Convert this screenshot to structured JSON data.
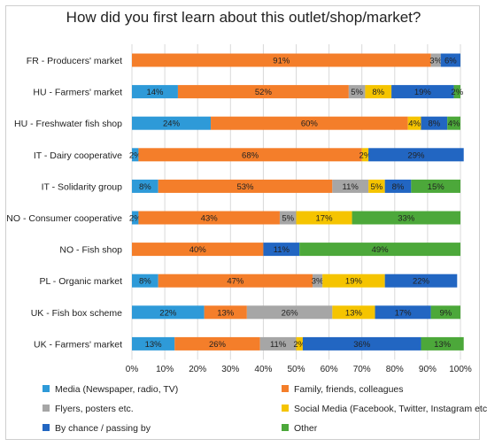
{
  "chart_data": {
    "type": "bar",
    "orientation": "horizontal-stacked-100",
    "title": "How did you first learn about this outlet/shop/market?",
    "categories": [
      "FR - Producers' market",
      "HU - Farmers' market",
      "HU - Freshwater fish shop",
      "IT - Dairy cooperative",
      "IT - Solidarity group",
      "NO - Consumer cooperative",
      "NO - Fish shop",
      "PL - Organic market",
      "UK -  Fish box scheme",
      "UK - Farmers' market"
    ],
    "xlim": [
      0,
      100
    ],
    "x_ticks": [
      "0%",
      "10%",
      "20%",
      "30%",
      "40%",
      "50%",
      "60%",
      "70%",
      "80%",
      "90%",
      "100%"
    ],
    "grid": true,
    "legend_position": "bottom",
    "series": [
      {
        "name": "Media (Newspaper, radio, TV)",
        "color": "#2e9ad8",
        "values": [
          0,
          14,
          24,
          2,
          8,
          2,
          0,
          8,
          22,
          13
        ],
        "labels": [
          "",
          "14%",
          "24%",
          "2%",
          "8%",
          "2%",
          "",
          "8%",
          "22%",
          "13%"
        ]
      },
      {
        "name": "Family, friends, colleagues",
        "color": "#f47e2a",
        "values": [
          91,
          52,
          60,
          68,
          53,
          43,
          40,
          47,
          13,
          26
        ],
        "labels": [
          "91%",
          "52%",
          "60%",
          "68%",
          "53%",
          "43%",
          "40%",
          "47%",
          "13%",
          "26%"
        ]
      },
      {
        "name": "Flyers, posters etc.",
        "color": "#a6a6a6",
        "values": [
          3,
          5,
          0,
          0,
          11,
          5,
          0,
          3,
          26,
          11
        ],
        "labels": [
          "3%",
          "5%",
          "",
          "",
          "11%",
          "5%",
          "",
          "3%",
          "26%",
          "11%"
        ]
      },
      {
        "name": "Social Media (Facebook, Twitter, Instagram etc.)",
        "color": "#f5c400",
        "values": [
          0,
          8,
          4,
          2,
          5,
          17,
          0,
          19,
          13,
          2
        ],
        "labels": [
          "",
          "8%",
          "4%",
          "2%",
          "5%",
          "17%",
          "",
          "19%",
          "13%",
          "2%"
        ]
      },
      {
        "name": "By chance / passing by",
        "color": "#2266c2",
        "values": [
          6,
          19,
          8,
          29,
          8,
          0,
          11,
          22,
          17,
          36
        ],
        "labels": [
          "6%",
          "19%",
          "8%",
          "29%",
          "8%",
          "",
          "11%",
          "22%",
          "17%",
          "36%"
        ]
      },
      {
        "name": "Other",
        "color": "#4ca83a",
        "values": [
          0,
          2,
          4,
          0,
          15,
          33,
          49,
          0,
          9,
          13
        ],
        "labels": [
          "",
          "2%",
          "4%",
          "",
          "15%",
          "33%",
          "49%",
          "",
          "9%",
          "13%"
        ]
      }
    ]
  }
}
